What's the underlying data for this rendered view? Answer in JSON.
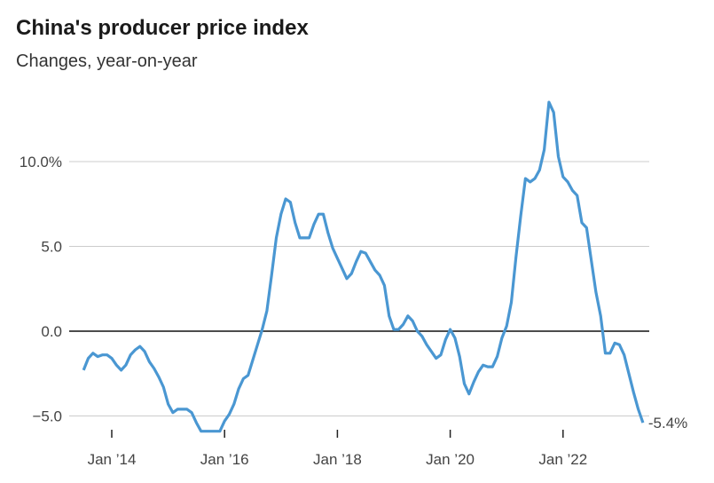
{
  "chart_data": {
    "type": "line",
    "title": "China's producer price index",
    "subtitle": "Changes, year-on-year",
    "xlabel": "",
    "ylabel": "",
    "start": "2013-07",
    "end": "2023-06",
    "frequency": "monthly",
    "ylim": [
      -6.5,
      14
    ],
    "grid": true,
    "line_color": "#4a97d2",
    "y_ticks": [
      {
        "value": 10,
        "label": "10.0%"
      },
      {
        "value": 5,
        "label": "5.0"
      },
      {
        "value": 0,
        "label": "0.0"
      },
      {
        "value": -5,
        "label": "−5.0"
      }
    ],
    "x_ticks": [
      {
        "date": "2014-01",
        "label": "Jan ’14"
      },
      {
        "date": "2016-01",
        "label": "Jan ’16"
      },
      {
        "date": "2018-01",
        "label": "Jan ’18"
      },
      {
        "date": "2020-01",
        "label": "Jan ’20"
      },
      {
        "date": "2022-01",
        "label": "Jan ’22"
      }
    ],
    "end_label": "-5.4%",
    "values": [
      -2.3,
      -1.6,
      -1.3,
      -1.5,
      -1.4,
      -1.4,
      -1.6,
      -2.0,
      -2.3,
      -2.0,
      -1.4,
      -1.1,
      -0.9,
      -1.2,
      -1.8,
      -2.2,
      -2.7,
      -3.3,
      -4.3,
      -4.8,
      -4.6,
      -4.6,
      -4.6,
      -4.8,
      -5.4,
      -5.9,
      -5.9,
      -5.9,
      -5.9,
      -5.9,
      -5.3,
      -4.9,
      -4.3,
      -3.4,
      -2.8,
      -2.6,
      -1.7,
      -0.8,
      0.1,
      1.2,
      3.3,
      5.5,
      6.9,
      7.8,
      7.6,
      6.4,
      5.5,
      5.5,
      5.5,
      6.3,
      6.9,
      6.9,
      5.8,
      4.9,
      4.3,
      3.7,
      3.1,
      3.4,
      4.1,
      4.7,
      4.6,
      4.1,
      3.6,
      3.3,
      2.7,
      0.9,
      0.1,
      0.1,
      0.4,
      0.9,
      0.6,
      0.0,
      -0.3,
      -0.8,
      -1.2,
      -1.6,
      -1.4,
      -0.5,
      0.1,
      -0.4,
      -1.5,
      -3.1,
      -3.7,
      -3.0,
      -2.4,
      -2.0,
      -2.1,
      -2.1,
      -1.5,
      -0.4,
      0.3,
      1.7,
      4.4,
      6.8,
      9.0,
      8.8,
      9.0,
      9.5,
      10.7,
      13.5,
      12.9,
      10.3,
      9.1,
      8.8,
      8.3,
      8.0,
      6.4,
      6.1,
      4.2,
      2.3,
      0.9,
      -1.3,
      -1.3,
      -0.7,
      -0.8,
      -1.4,
      -2.5,
      -3.6,
      -4.6,
      -5.4
    ]
  }
}
